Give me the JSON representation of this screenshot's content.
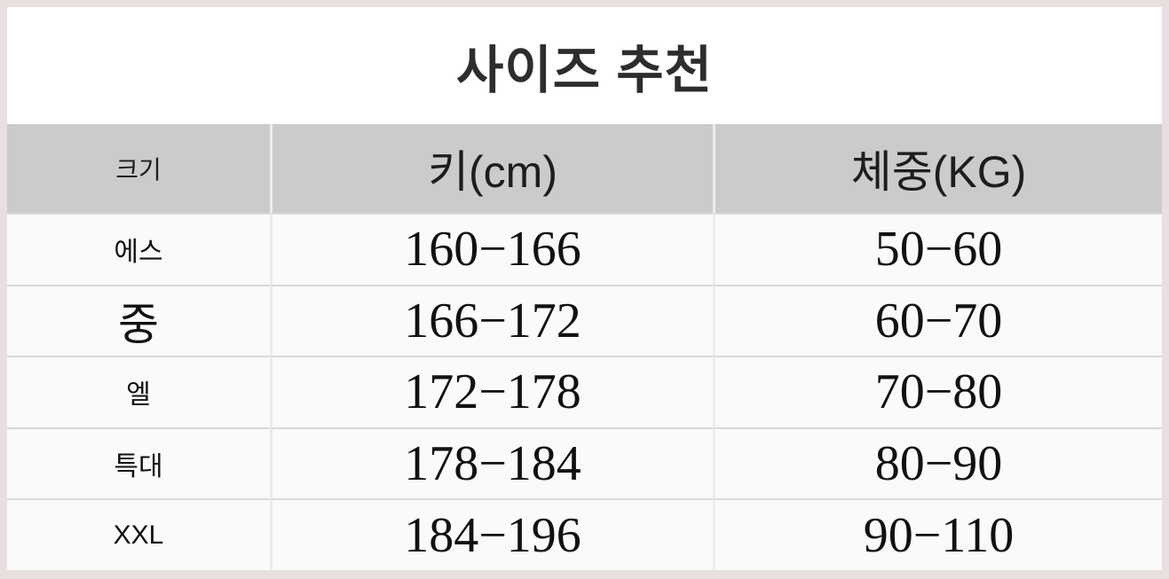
{
  "title": "사이즈 추천",
  "chart_data": {
    "type": "table",
    "title": "사이즈 추천",
    "columns": [
      "크기",
      "키(cm)",
      "체중(KG)"
    ],
    "rows": [
      [
        "에스",
        "160−166",
        "50−60"
      ],
      [
        "중",
        "166−172",
        "60−70"
      ],
      [
        "엘",
        "172−178",
        "70−80"
      ],
      [
        "특대",
        "178−184",
        "80−90"
      ],
      [
        "XXL",
        "184−196",
        "90−110"
      ]
    ],
    "column_semantics": [
      "size",
      "height_cm",
      "weight_kg"
    ]
  },
  "colors": {
    "outer_border": "#e7e0df",
    "sheet_bg": "#ffffff",
    "header_bg": "#cbcbcb",
    "row_bg": "#fbfafa",
    "row_separator": "#d9d9d9",
    "column_divider": "#ececec",
    "text": "#111111",
    "title_text": "#2d2d2d"
  }
}
